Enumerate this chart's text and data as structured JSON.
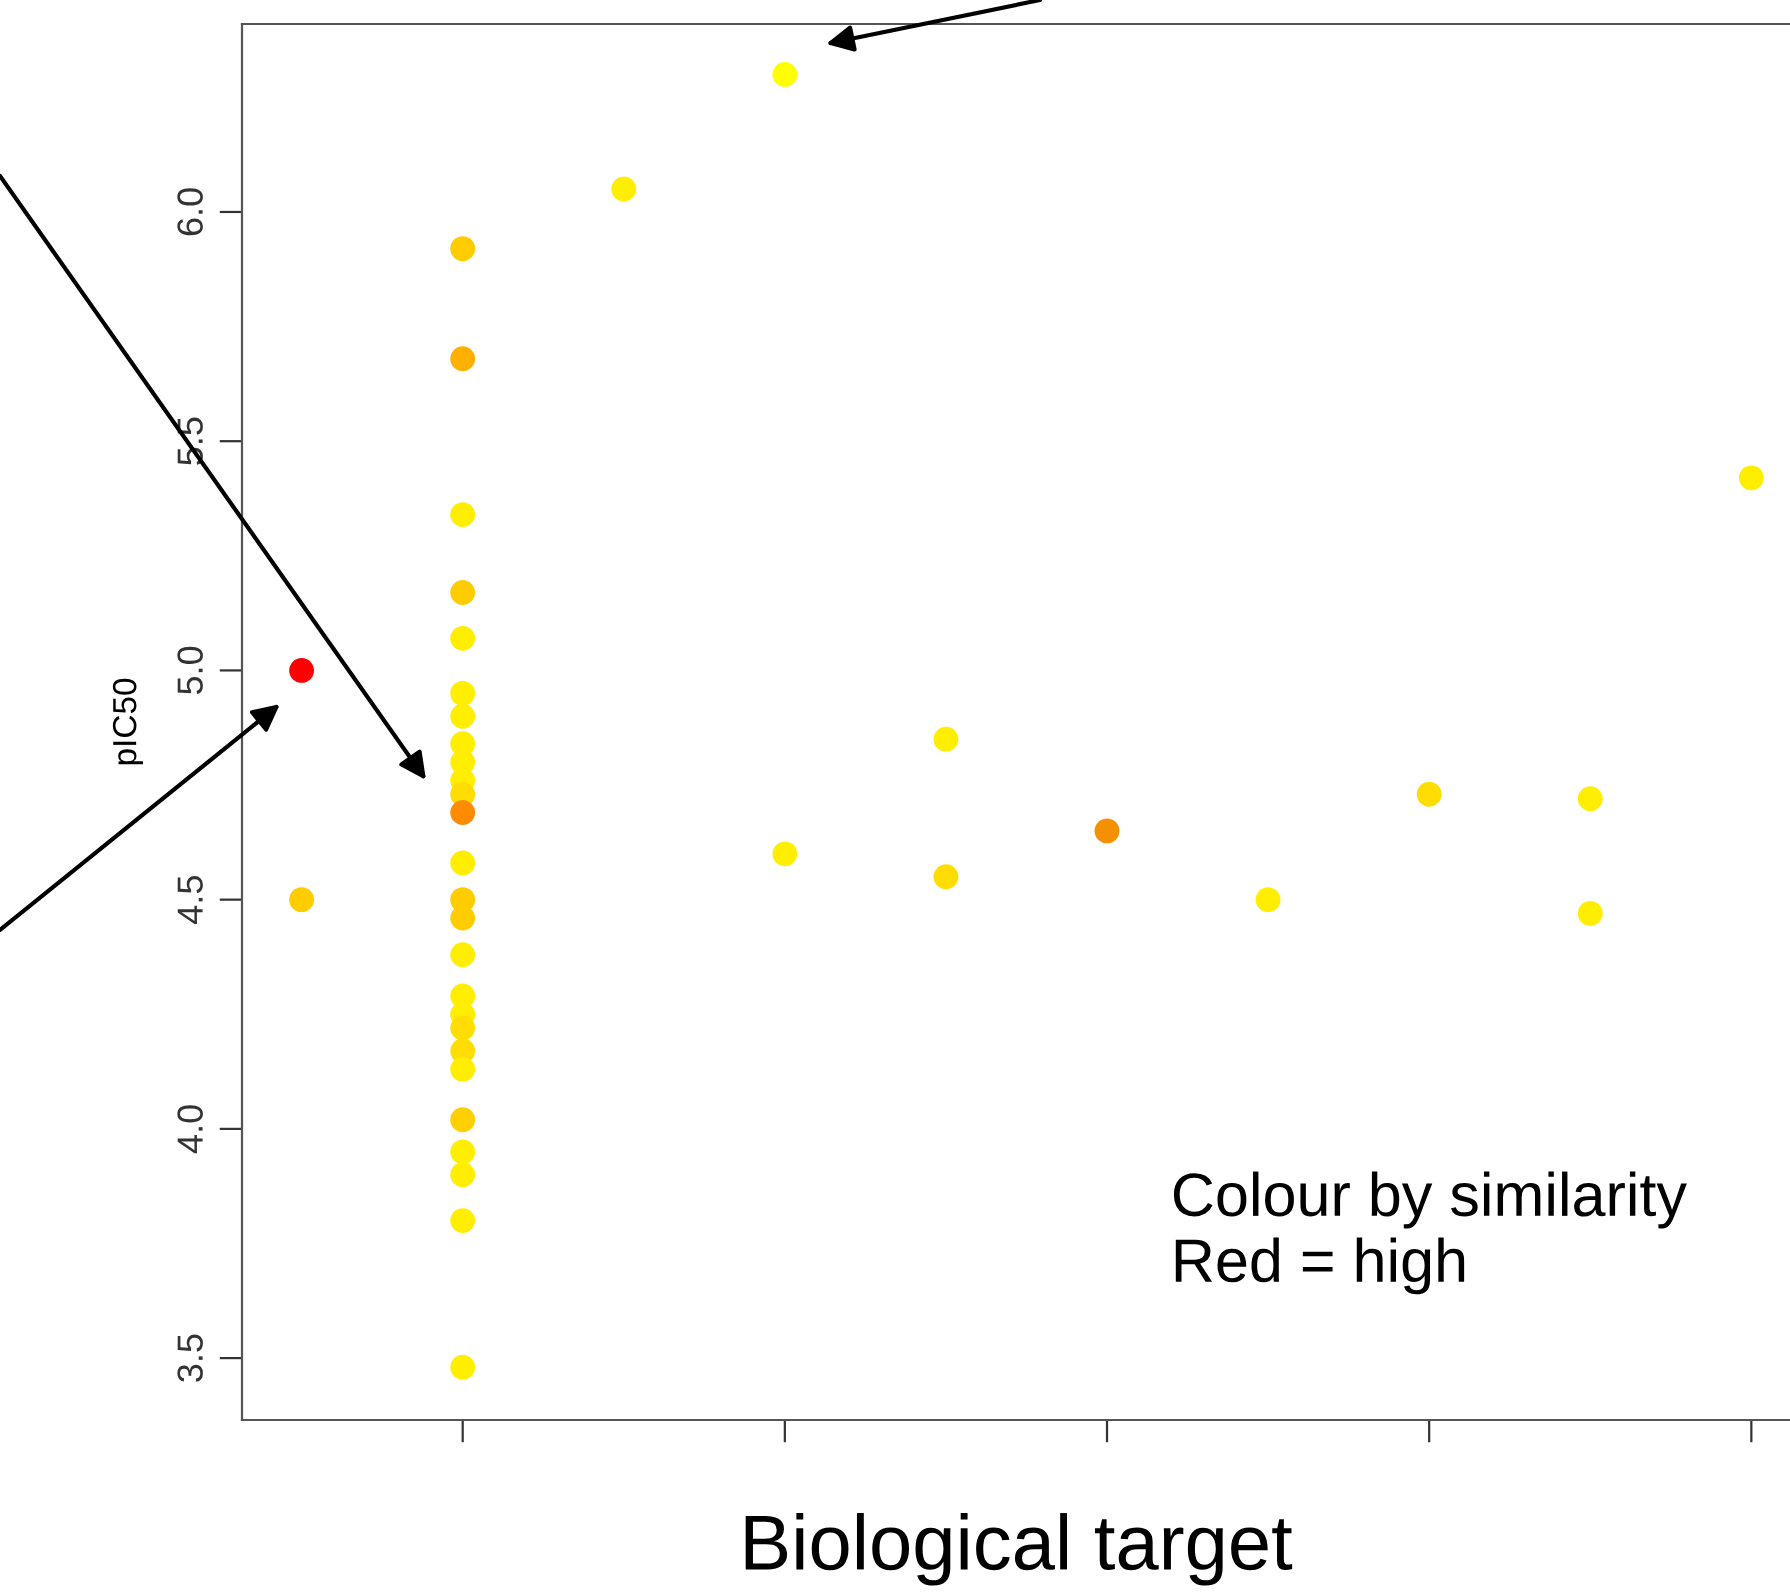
{
  "chart_data": {
    "type": "scatter",
    "xlabel": "Biological target",
    "ylabel": "pIC50",
    "categories": [
      null,
      null,
      null,
      null,
      null,
      null,
      null,
      null,
      null,
      null
    ],
    "series": [
      {
        "values": [
          5.0,
          5.92,
          6.05,
          6.3,
          4.85,
          4.65,
          4.5,
          4.73,
          4.72,
          5.42
        ],
        "colors": [
          "#ff0000",
          "#ffcc00",
          "#ffee00",
          "#ffff00",
          "#ffee00",
          "#f59000",
          "#ffee00",
          "#ffdd00",
          "#ffee00",
          "#ffee00"
        ]
      },
      {
        "values": [
          4.5,
          5.68,
          null,
          4.6,
          4.55,
          null,
          null,
          null,
          4.47,
          null
        ],
        "colors": [
          "#ffcc00",
          "#ffb000",
          null,
          "#ffee00",
          "#ffdd00",
          null,
          null,
          null,
          "#ffee00",
          null
        ]
      },
      {
        "values": [
          null,
          5.34,
          null,
          null,
          null,
          null,
          null,
          null,
          null,
          null
        ],
        "colors": [
          null,
          "#ffee00",
          null,
          null,
          null,
          null,
          null,
          null,
          null,
          null
        ]
      },
      {
        "values": [
          null,
          5.17,
          null,
          null,
          null,
          null,
          null,
          null,
          null,
          null
        ],
        "colors": [
          null,
          "#ffcc00",
          null,
          null,
          null,
          null,
          null,
          null,
          null,
          null
        ]
      },
      {
        "values": [
          null,
          5.07,
          null,
          null,
          null,
          null,
          null,
          null,
          null,
          null
        ],
        "colors": [
          null,
          "#ffee00",
          null,
          null,
          null,
          null,
          null,
          null,
          null,
          null
        ]
      },
      {
        "values": [
          null,
          4.95,
          null,
          null,
          null,
          null,
          null,
          null,
          null,
          null
        ],
        "colors": [
          null,
          "#ffee00",
          null,
          null,
          null,
          null,
          null,
          null,
          null,
          null
        ]
      },
      {
        "values": [
          null,
          4.9,
          null,
          null,
          null,
          null,
          null,
          null,
          null,
          null
        ],
        "colors": [
          null,
          "#ffee00",
          null,
          null,
          null,
          null,
          null,
          null,
          null,
          null
        ]
      },
      {
        "values": [
          null,
          4.84,
          null,
          null,
          null,
          null,
          null,
          null,
          null,
          null
        ],
        "colors": [
          null,
          "#ffee00",
          null,
          null,
          null,
          null,
          null,
          null,
          null,
          null
        ]
      },
      {
        "values": [
          null,
          4.8,
          null,
          null,
          null,
          null,
          null,
          null,
          null,
          null
        ],
        "colors": [
          null,
          "#ffee00",
          null,
          null,
          null,
          null,
          null,
          null,
          null,
          null
        ]
      },
      {
        "values": [
          null,
          4.76,
          null,
          null,
          null,
          null,
          null,
          null,
          null,
          null
        ],
        "colors": [
          null,
          "#ffee00",
          null,
          null,
          null,
          null,
          null,
          null,
          null,
          null
        ]
      },
      {
        "values": [
          null,
          4.73,
          null,
          null,
          null,
          null,
          null,
          null,
          null,
          null
        ],
        "colors": [
          null,
          "#ffdd00",
          null,
          null,
          null,
          null,
          null,
          null,
          null,
          null
        ]
      },
      {
        "values": [
          null,
          null,
          null,
          null,
          null,
          null,
          null,
          null,
          null,
          null
        ],
        "colors": [
          null,
          null,
          null,
          null,
          null,
          null,
          null,
          null,
          null,
          null
        ]
      },
      {
        "values": [
          null,
          4.69,
          null,
          null,
          null,
          null,
          null,
          null,
          null,
          null
        ],
        "colors": [
          null,
          "#ff8c00",
          null,
          null,
          null,
          null,
          null,
          null,
          null,
          null
        ]
      },
      {
        "values": [
          null,
          4.58,
          null,
          null,
          null,
          null,
          null,
          null,
          null,
          null
        ],
        "colors": [
          null,
          "#ffee00",
          null,
          null,
          null,
          null,
          null,
          null,
          null,
          null
        ]
      },
      {
        "values": [
          null,
          4.5,
          null,
          null,
          null,
          null,
          null,
          null,
          null,
          null
        ],
        "colors": [
          null,
          "#ffcc00",
          null,
          null,
          null,
          null,
          null,
          null,
          null,
          null
        ]
      },
      {
        "values": [
          null,
          4.46,
          null,
          null,
          null,
          null,
          null,
          null,
          null,
          null
        ],
        "colors": [
          null,
          "#ffcc00",
          null,
          null,
          null,
          null,
          null,
          null,
          null,
          null
        ]
      },
      {
        "values": [
          null,
          4.38,
          null,
          null,
          null,
          null,
          null,
          null,
          null,
          null
        ],
        "colors": [
          null,
          "#ffee00",
          null,
          null,
          null,
          null,
          null,
          null,
          null,
          null
        ]
      },
      {
        "values": [
          null,
          4.29,
          null,
          null,
          null,
          null,
          null,
          null,
          null,
          null
        ],
        "colors": [
          null,
          "#ffee00",
          null,
          null,
          null,
          null,
          null,
          null,
          null,
          null
        ]
      },
      {
        "values": [
          null,
          4.25,
          null,
          null,
          null,
          null,
          null,
          null,
          null,
          null
        ],
        "colors": [
          null,
          "#ffee00",
          null,
          null,
          null,
          null,
          null,
          null,
          null,
          null
        ]
      },
      {
        "values": [
          null,
          4.22,
          null,
          null,
          null,
          null,
          null,
          null,
          null,
          null
        ],
        "colors": [
          null,
          "#ffdd00",
          null,
          null,
          null,
          null,
          null,
          null,
          null,
          null
        ]
      },
      {
        "values": [
          null,
          4.17,
          null,
          null,
          null,
          null,
          null,
          null,
          null,
          null
        ],
        "colors": [
          null,
          "#ffdd00",
          null,
          null,
          null,
          null,
          null,
          null,
          null,
          null
        ]
      },
      {
        "values": [
          null,
          4.13,
          null,
          null,
          null,
          null,
          null,
          null,
          null,
          null
        ],
        "colors": [
          null,
          "#ffee00",
          null,
          null,
          null,
          null,
          null,
          null,
          null,
          null
        ]
      },
      {
        "values": [
          null,
          4.02,
          null,
          null,
          null,
          null,
          null,
          null,
          null,
          null
        ],
        "colors": [
          null,
          "#ffd000",
          null,
          null,
          null,
          null,
          null,
          null,
          null,
          null
        ]
      },
      {
        "values": [
          null,
          3.95,
          null,
          null,
          null,
          null,
          null,
          null,
          null,
          null
        ],
        "colors": [
          null,
          "#ffee00",
          null,
          null,
          null,
          null,
          null,
          null,
          null,
          null
        ]
      },
      {
        "values": [
          null,
          3.9,
          null,
          null,
          null,
          null,
          null,
          null,
          null,
          null
        ],
        "colors": [
          null,
          "#ffee00",
          null,
          null,
          null,
          null,
          null,
          null,
          null,
          null
        ]
      },
      {
        "values": [
          null,
          3.8,
          null,
          null,
          null,
          null,
          null,
          null,
          null,
          null
        ],
        "colors": [
          null,
          "#ffee00",
          null,
          null,
          null,
          null,
          null,
          null,
          null,
          null
        ]
      },
      {
        "values": [
          null,
          3.48,
          null,
          null,
          null,
          null,
          null,
          null,
          null,
          null
        ],
        "colors": [
          null,
          "#ffee00",
          null,
          null,
          null,
          null,
          null,
          null,
          null,
          null
        ]
      }
    ],
    "marker": "circle",
    "grid": false,
    "ylim": [
      3.365,
      6.41
    ],
    "yticks": [
      {
        "value": 3.5,
        "label": "3.5"
      },
      {
        "value": 4.0,
        "label": "4.0"
      },
      {
        "value": 4.5,
        "label": "4.5"
      },
      {
        "value": 5.0,
        "label": "5.0"
      },
      {
        "value": 5.5,
        "label": "5.5"
      },
      {
        "value": 6.0,
        "label": "6.0"
      }
    ],
    "annotations": [
      "Colour by similarity\nRed = high"
    ]
  }
}
